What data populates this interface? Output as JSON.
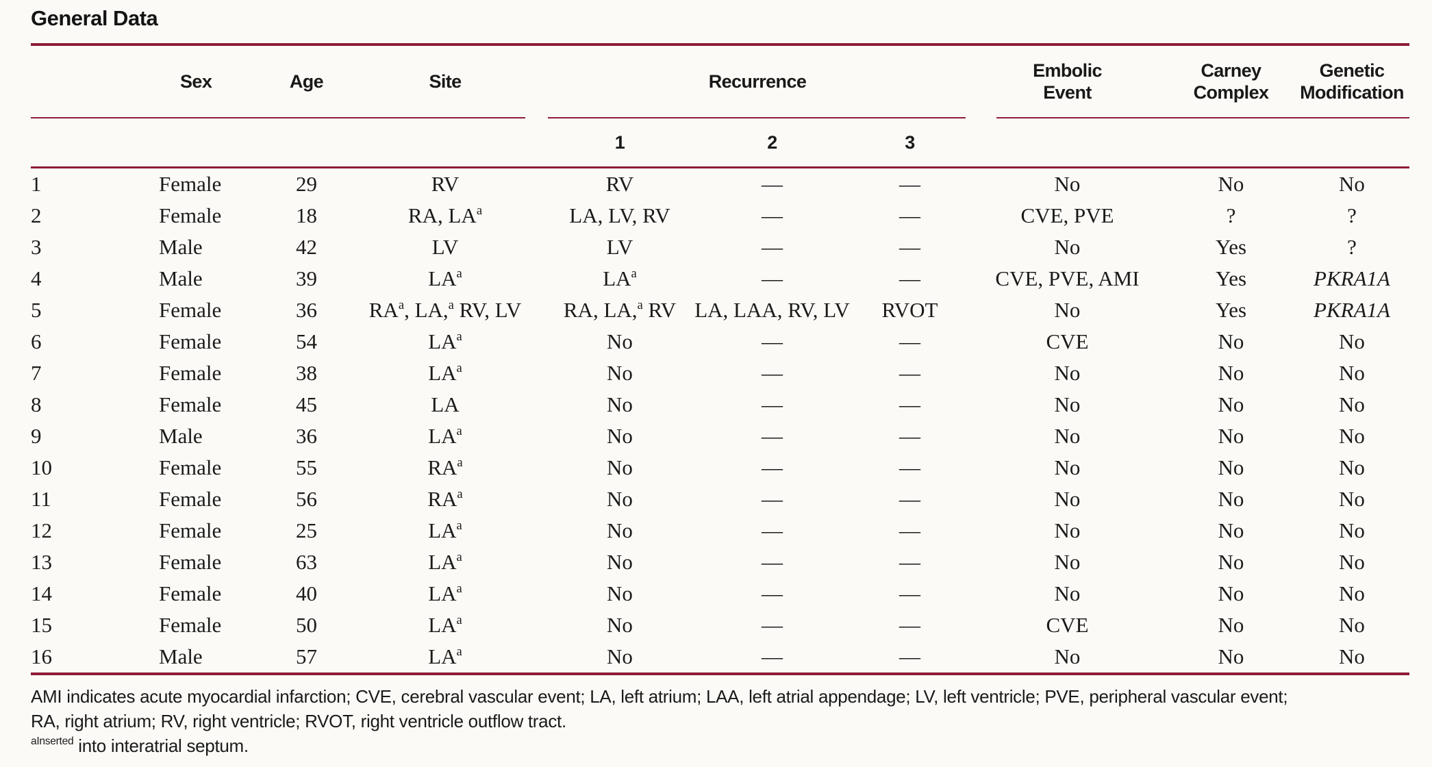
{
  "title": "General Data",
  "colors": {
    "rule": "#8e1b38",
    "text": "#1b1b1a",
    "background": "#fbfaf7"
  },
  "table": {
    "headers": {
      "row_num": "",
      "sex": "Sex",
      "age": "Age",
      "site": "Site",
      "recurrence": "Recurrence",
      "recurrence_subcolumns": [
        "1",
        "2",
        "3"
      ],
      "embolic_event": "Embolic\nEvent",
      "carney_complex": "Carney\nComplex",
      "genetic_modification": "Genetic\nModification"
    },
    "rows": [
      {
        "num": "1",
        "sex": "Female",
        "age": "29",
        "site": "RV",
        "rec1": "RV",
        "rec2": "—",
        "rec3": "—",
        "embolic": "No",
        "carney": "No",
        "genetic": "No",
        "genetic_italic": false
      },
      {
        "num": "2",
        "sex": "Female",
        "age": "18",
        "site": "RA, LA^a",
        "rec1": "LA, LV, RV",
        "rec2": "—",
        "rec3": "—",
        "embolic": "CVE, PVE",
        "carney": "?",
        "genetic": "?",
        "genetic_italic": false
      },
      {
        "num": "3",
        "sex": "Male",
        "age": "42",
        "site": "LV",
        "rec1": "LV",
        "rec2": "—",
        "rec3": "—",
        "embolic": "No",
        "carney": "Yes",
        "genetic": "?",
        "genetic_italic": false
      },
      {
        "num": "4",
        "sex": "Male",
        "age": "39",
        "site": "LA^a",
        "rec1": "LA^a",
        "rec2": "—",
        "rec3": "—",
        "embolic": "CVE, PVE, AMI",
        "carney": "Yes",
        "genetic": "PKRA1A",
        "genetic_italic": true
      },
      {
        "num": "5",
        "sex": "Female",
        "age": "36",
        "site": "RA^a, LA,^a RV, LV",
        "rec1": "RA, LA,^a RV",
        "rec2": "LA, LAA, RV, LV",
        "rec3": "RVOT",
        "embolic": "No",
        "carney": "Yes",
        "genetic": "PKRA1A",
        "genetic_italic": true
      },
      {
        "num": "6",
        "sex": "Female",
        "age": "54",
        "site": "LA^a",
        "rec1": "No",
        "rec2": "—",
        "rec3": "—",
        "embolic": "CVE",
        "carney": "No",
        "genetic": "No",
        "genetic_italic": false
      },
      {
        "num": "7",
        "sex": "Female",
        "age": "38",
        "site": "LA^a",
        "rec1": "No",
        "rec2": "—",
        "rec3": "—",
        "embolic": "No",
        "carney": "No",
        "genetic": "No",
        "genetic_italic": false
      },
      {
        "num": "8",
        "sex": "Female",
        "age": "45",
        "site": "LA",
        "rec1": "No",
        "rec2": "—",
        "rec3": "—",
        "embolic": "No",
        "carney": "No",
        "genetic": "No",
        "genetic_italic": false
      },
      {
        "num": "9",
        "sex": "Male",
        "age": "36",
        "site": "LA^a",
        "rec1": "No",
        "rec2": "—",
        "rec3": "—",
        "embolic": "No",
        "carney": "No",
        "genetic": "No",
        "genetic_italic": false
      },
      {
        "num": "10",
        "sex": "Female",
        "age": "55",
        "site": "RA^a",
        "rec1": "No",
        "rec2": "—",
        "rec3": "—",
        "embolic": "No",
        "carney": "No",
        "genetic": "No",
        "genetic_italic": false
      },
      {
        "num": "11",
        "sex": "Female",
        "age": "56",
        "site": "RA^a",
        "rec1": "No",
        "rec2": "—",
        "rec3": "—",
        "embolic": "No",
        "carney": "No",
        "genetic": "No",
        "genetic_italic": false
      },
      {
        "num": "12",
        "sex": "Female",
        "age": "25",
        "site": "LA^a",
        "rec1": "No",
        "rec2": "—",
        "rec3": "—",
        "embolic": "No",
        "carney": "No",
        "genetic": "No",
        "genetic_italic": false
      },
      {
        "num": "13",
        "sex": "Female",
        "age": "63",
        "site": "LA^a",
        "rec1": "No",
        "rec2": "—",
        "rec3": "—",
        "embolic": "No",
        "carney": "No",
        "genetic": "No",
        "genetic_italic": false
      },
      {
        "num": "14",
        "sex": "Female",
        "age": "40",
        "site": "LA^a",
        "rec1": "No",
        "rec2": "—",
        "rec3": "—",
        "embolic": "No",
        "carney": "No",
        "genetic": "No",
        "genetic_italic": false
      },
      {
        "num": "15",
        "sex": "Female",
        "age": "50",
        "site": "LA^a",
        "rec1": "No",
        "rec2": "—",
        "rec3": "—",
        "embolic": "CVE",
        "carney": "No",
        "genetic": "No",
        "genetic_italic": false
      },
      {
        "num": "16",
        "sex": "Male",
        "age": "57",
        "site": "LA^a",
        "rec1": "No",
        "rec2": "—",
        "rec3": "—",
        "embolic": "No",
        "carney": "No",
        "genetic": "No",
        "genetic_italic": false
      }
    ]
  },
  "footnotes": {
    "abbreviations": "AMI indicates acute myocardial infarction; CVE, cerebral vascular event; LA, left atrium; LAA, left atrial appendage; LV, left ventricle; PVE, peripheral vascular event;\nRA, right atrium; RV, right ventricle; RVOT, right ventricle outflow tract.",
    "superscript_a": "^aInserted into interatrial septum."
  }
}
